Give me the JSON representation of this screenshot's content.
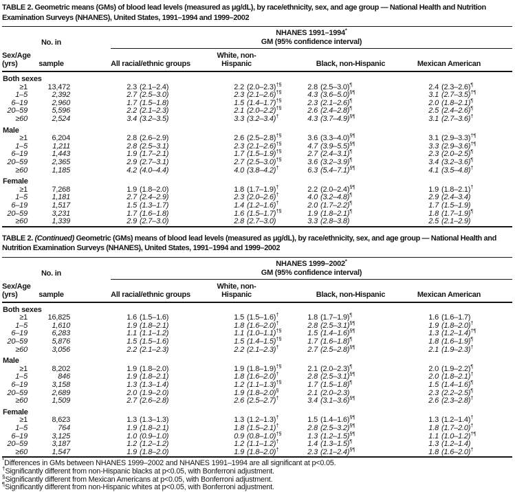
{
  "page": {
    "background": "#ffffff",
    "text_color": "#141414"
  },
  "table1": {
    "heading": {
      "label": "TABLE 2.",
      "continued": "",
      "text": "Geometric means (GMs) of blood lead levels (measured as μg/dL), by race/ethnicity, sex, and age group — National Health and Nutrition Examination Surveys (NHANES), United States, 1991–1994 and 1999–2002"
    },
    "spanner": {
      "survey": "NHANES 1991–1994",
      "marker": "*",
      "subtitle": "GM (95% confidence interval)"
    },
    "columns": {
      "sex_age": "Sex/Age (yrs)",
      "n_line1": "No. in",
      "n_line2": "sample",
      "groups": [
        "All racial/ethnic groups",
        "White, non-Hispanic",
        "Black, non-Hispanic",
        "Mexican American"
      ]
    },
    "sections": [
      {
        "label": "Both sexes",
        "rows": [
          {
            "age": "≥1",
            "n": "13,472",
            "italic": false,
            "cells": [
              [
                "2.3",
                "(2.1–2.4)",
                ""
              ],
              [
                "2.2",
                "(2.0–2.3)",
                "†§"
              ],
              [
                "2.8",
                "(2.5–3.0)",
                "¶"
              ],
              [
                "2.4",
                "(2.3–2.6)",
                "¶"
              ]
            ]
          },
          {
            "age": "1–5",
            "n": "2,392",
            "italic": true,
            "cells": [
              [
                "2.7",
                "(2.5–3.0)",
                ""
              ],
              [
                "2.3",
                "(2.1–2.6)",
                "†§"
              ],
              [
                "4.3",
                "(3.6–5.0)",
                "§¶"
              ],
              [
                "3.1",
                "(2.7–3.5)",
                "†¶"
              ]
            ]
          },
          {
            "age": "6–19",
            "n": "2,960",
            "italic": true,
            "cells": [
              [
                "1.7",
                "(1.5–1.8)",
                ""
              ],
              [
                "1.5",
                "(1.4–1.7)",
                "†§"
              ],
              [
                "2.3",
                "(2.1–2.6)",
                "¶"
              ],
              [
                "2.0",
                "(1.8–2.1)",
                "¶"
              ]
            ]
          },
          {
            "age": "20–59",
            "n": "5,596",
            "italic": true,
            "cells": [
              [
                "2.2",
                "(2.1–2.3)",
                ""
              ],
              [
                "2.1",
                "(2.0–2.2)",
                "†§"
              ],
              [
                "2.6",
                "(2.4–2.8)",
                "¶"
              ],
              [
                "2.5",
                "(2.4–2.6)",
                "¶"
              ]
            ]
          },
          {
            "age": "≥60",
            "n": "2,524",
            "italic": true,
            "cells": [
              [
                "3.4",
                "(3.2–3.5)",
                ""
              ],
              [
                "3.3",
                "(3.2–3.4)",
                "†"
              ],
              [
                "4.3",
                "(3.7–4.9)",
                "§¶"
              ],
              [
                "3.1",
                "(2.7–3.6)",
                "†"
              ]
            ]
          }
        ]
      },
      {
        "label": "Male",
        "rows": [
          {
            "age": "≥1",
            "n": "6,204",
            "italic": false,
            "cells": [
              [
                "2.8",
                "(2.6–2.9)",
                ""
              ],
              [
                "2.6",
                "(2.5–2.8)",
                "†§"
              ],
              [
                "3.6",
                "(3.3–4.0)",
                "§¶"
              ],
              [
                "3.1",
                "(2.9–3.3)",
                "†¶"
              ]
            ]
          },
          {
            "age": "1–5",
            "n": "1,211",
            "italic": true,
            "cells": [
              [
                "2.8",
                "(2.5–3.1)",
                ""
              ],
              [
                "2.3",
                "(2.1–2.6)",
                "†§"
              ],
              [
                "4.7",
                "(3.9–5.5)",
                "§¶"
              ],
              [
                "3.3",
                "(2.9–3.6)",
                "†¶"
              ]
            ]
          },
          {
            "age": "6–19",
            "n": "1,443",
            "italic": true,
            "cells": [
              [
                "1.9",
                "(1.7–2.1)",
                ""
              ],
              [
                "1.7",
                "(1.5–1.9)",
                "†§"
              ],
              [
                "2.7",
                "(2.4–3.1)",
                "¶"
              ],
              [
                "2.3",
                "(2.0–2.5)",
                "¶"
              ]
            ]
          },
          {
            "age": "20–59",
            "n": "2,365",
            "italic": true,
            "cells": [
              [
                "2.9",
                "(2.7–3.1)",
                ""
              ],
              [
                "2.7",
                "(2.5–3.0)",
                "†§"
              ],
              [
                "3.6",
                "(3.2–3.9)",
                "¶"
              ],
              [
                "3.4",
                "(3.2–3.6)",
                "¶"
              ]
            ]
          },
          {
            "age": "≥60",
            "n": "1,185",
            "italic": true,
            "cells": [
              [
                "4.2",
                "(4.0–4.4)",
                ""
              ],
              [
                "4.0",
                "(3.8–4.2)",
                "†"
              ],
              [
                "6.3",
                "(5.4–7.1)",
                "§¶"
              ],
              [
                "4.1",
                "(3.5–4.8)",
                "†"
              ]
            ]
          }
        ]
      },
      {
        "label": "Female",
        "rows": [
          {
            "age": "≥1",
            "n": "7,268",
            "italic": false,
            "cells": [
              [
                "1.9",
                "(1.8–2.0)",
                ""
              ],
              [
                "1.8",
                "(1.7–1.9)",
                "†"
              ],
              [
                "2.2",
                "(2.0–2.4)",
                "§¶"
              ],
              [
                "1.9",
                "(1.8–2.1)",
                "†"
              ]
            ]
          },
          {
            "age": "1–5",
            "n": "1,181",
            "italic": true,
            "cells": [
              [
                "2.7",
                "(2.4–2.9)",
                ""
              ],
              [
                "2.3",
                "(2.0–2.6)",
                "†"
              ],
              [
                "4.0",
                "(3.2–4.8)",
                "¶"
              ],
              [
                "2.9",
                "(2.4–3.4)",
                ""
              ]
            ]
          },
          {
            "age": "6–19",
            "n": "1,517",
            "italic": true,
            "cells": [
              [
                "1.5",
                "(1.3–1.7)",
                ""
              ],
              [
                "1.4",
                "(1.2–1.6)",
                "†"
              ],
              [
                "2.0",
                "(1.7–2.2)",
                "¶"
              ],
              [
                "1.7",
                "(1.5–1.9)",
                ""
              ]
            ]
          },
          {
            "age": "20–59",
            "n": "3,231",
            "italic": true,
            "cells": [
              [
                "1.7",
                "(1.6–1.8)",
                ""
              ],
              [
                "1.6",
                "(1.5–1.7)",
                "†§"
              ],
              [
                "1.9",
                "(1.8–2.1)",
                "¶"
              ],
              [
                "1.8",
                "(1.7–1.9)",
                "¶"
              ]
            ]
          },
          {
            "age": "≥60",
            "n": "1,339",
            "italic": true,
            "cells": [
              [
                "2.9",
                "(2.7–3.0)",
                ""
              ],
              [
                "2.8",
                "(2.7–3.0)",
                ""
              ],
              [
                "3.3",
                "(2.8–3.8)",
                ""
              ],
              [
                "2.5",
                "(2.1–2.9)",
                ""
              ]
            ]
          }
        ]
      }
    ]
  },
  "table2": {
    "heading": {
      "label": "TABLE 2.",
      "continued": "(Continued)",
      "text": "Geometric (GMs) means of blood lead levels (measured as μg/dL), by race/ethnicity, sex, and age group — National Health and Nutrition Examination Surveys (NHANES), United States, 1991–1994 and 1999–2002"
    },
    "spanner": {
      "survey": "NHANES 1999–2002",
      "marker": "*",
      "subtitle": "GM (95% confidence interval)"
    },
    "columns": {
      "sex_age": "Sex/Age (yrs)",
      "n_line1": "No. in",
      "n_line2": "sample",
      "groups": [
        "All racial/ethnic groups",
        "White, non-Hispanic",
        "Black, non-Hispanic",
        "Mexican American"
      ]
    },
    "sections": [
      {
        "label": "Both sexes",
        "rows": [
          {
            "age": "≥1",
            "n": "16,825",
            "italic": false,
            "cells": [
              [
                "1.6",
                "(1.5–1.6)",
                ""
              ],
              [
                "1.5",
                "(1.5–1.6)",
                "†"
              ],
              [
                "1.8",
                "(1.7–1.9)",
                "¶"
              ],
              [
                "1.6",
                "(1.6–1.7)",
                ""
              ]
            ]
          },
          {
            "age": "1–5",
            "n": "1,610",
            "italic": true,
            "cells": [
              [
                "1.9",
                "(1.8–2.1)",
                ""
              ],
              [
                "1.8",
                "(1.6–2.0)",
                "†"
              ],
              [
                "2.8",
                "(2.5–3.1)",
                "§¶"
              ],
              [
                "1.9",
                "(1.8–2.0)",
                "†"
              ]
            ]
          },
          {
            "age": "6–19",
            "n": "6,283",
            "italic": true,
            "cells": [
              [
                "1.1",
                "(1.1–1.2)",
                ""
              ],
              [
                "1.1",
                "(1.0–1.1)",
                "†§"
              ],
              [
                "1.5",
                "(1.4–1.6)",
                "§¶"
              ],
              [
                "1.3",
                "(1.2–1.4)",
                "†¶"
              ]
            ]
          },
          {
            "age": "20–59",
            "n": "5,876",
            "italic": true,
            "cells": [
              [
                "1.5",
                "(1.5–1.6)",
                ""
              ],
              [
                "1.5",
                "(1.4–1.5)",
                "†§"
              ],
              [
                "1.7",
                "(1.6–1.8)",
                "¶"
              ],
              [
                "1.8",
                "(1.6–1.9)",
                "¶"
              ]
            ]
          },
          {
            "age": "≥60",
            "n": "3,056",
            "italic": true,
            "cells": [
              [
                "2.2",
                "(2.1–2.3)",
                ""
              ],
              [
                "2.2",
                "(2.1–2.3)",
                "†"
              ],
              [
                "2.7",
                "(2.5–2.8)",
                "§¶"
              ],
              [
                "2.1",
                "(1.9–2.3)",
                "†"
              ]
            ]
          }
        ]
      },
      {
        "label": "Male",
        "rows": [
          {
            "age": "≥1",
            "n": "8,202",
            "italic": false,
            "cells": [
              [
                "1.9",
                "(1.8–2.0)",
                ""
              ],
              [
                "1.9",
                "(1.8–1.9)",
                "†§"
              ],
              [
                "2.1",
                "(2.0–2.3)",
                "¶"
              ],
              [
                "2.0",
                "(1.9–2.2)",
                "¶"
              ]
            ]
          },
          {
            "age": "1–5",
            "n": "846",
            "italic": true,
            "cells": [
              [
                "1.9",
                "(1.8–2.1)",
                ""
              ],
              [
                "1.8",
                "(1.6–2.0)",
                "†"
              ],
              [
                "2.8",
                "(2.5–3.1)",
                "§¶"
              ],
              [
                "2.0",
                "(1.8–2.1)",
                "†"
              ]
            ]
          },
          {
            "age": "6–19",
            "n": "3,158",
            "italic": true,
            "cells": [
              [
                "1.3",
                "(1.3–1.4)",
                ""
              ],
              [
                "1.2",
                "(1.1–1.3)",
                "†§"
              ],
              [
                "1.7",
                "(1.5–1.8)",
                "¶"
              ],
              [
                "1.5",
                "(1.4–1.6)",
                "¶"
              ]
            ]
          },
          {
            "age": "20–59",
            "n": "2,689",
            "italic": true,
            "cells": [
              [
                "2.0",
                "(1.9–2.0)",
                ""
              ],
              [
                "1.9",
                "(1.8–2.0)",
                "§"
              ],
              [
                "2.1",
                "(2.0–2.3)",
                ""
              ],
              [
                "2.3",
                "(2.2–2.5)",
                "¶"
              ]
            ]
          },
          {
            "age": "≥60",
            "n": "1,509",
            "italic": true,
            "cells": [
              [
                "2.7",
                "(2.6–2.8)",
                ""
              ],
              [
                "2.6",
                "(2.5–2.7)",
                "†"
              ],
              [
                "3.4",
                "(3.1–3.6)",
                "§¶"
              ],
              [
                "2.6",
                "(2.3–2.8)",
                "†"
              ]
            ]
          }
        ]
      },
      {
        "label": "Female",
        "rows": [
          {
            "age": "≥1",
            "n": "8,623",
            "italic": false,
            "cells": [
              [
                "1.3",
                "(1.3–1.3)",
                ""
              ],
              [
                "1.3",
                "(1.2–1.3)",
                "†"
              ],
              [
                "1.5",
                "(1.4–1.6)",
                "§¶"
              ],
              [
                "1.3",
                "(1.2–1.4)",
                "†"
              ]
            ]
          },
          {
            "age": "1–5",
            "n": "764",
            "italic": true,
            "cells": [
              [
                "1.9",
                "(1.8–2.1)",
                ""
              ],
              [
                "1.8",
                "(1.5–2.1)",
                "†"
              ],
              [
                "2.8",
                "(2.5–3.2)",
                "§¶"
              ],
              [
                "1.8",
                "(1.7–2.0)",
                "†"
              ]
            ]
          },
          {
            "age": "6–19",
            "n": "3,125",
            "italic": true,
            "cells": [
              [
                "1.0",
                "(0.9–1.0)",
                ""
              ],
              [
                "0.9",
                "(0.8–1.0)",
                "†§"
              ],
              [
                "1.3",
                "(1.2–1.5)",
                "§¶"
              ],
              [
                "1.1",
                "(1.0–1.2)",
                "†¶"
              ]
            ]
          },
          {
            "age": "20–59",
            "n": "3,187",
            "italic": true,
            "cells": [
              [
                "1.2",
                "(1.2–1.2)",
                ""
              ],
              [
                "1.2",
                "(1.1–1.2)",
                "†"
              ],
              [
                "1.4",
                "(1.3–1.5)",
                "¶"
              ],
              [
                "1.3",
                "(1.2–1.4)",
                ""
              ]
            ]
          },
          {
            "age": "≥60",
            "n": "1,547",
            "italic": true,
            "cells": [
              [
                "1.9",
                "(1.8–2.0)",
                ""
              ],
              [
                "1.9",
                "(1.8–2.0)",
                "†"
              ],
              [
                "2.3",
                "(2.1–2.4)",
                "§¶"
              ],
              [
                "1.8",
                "(1.6–2.0)",
                "†"
              ]
            ]
          }
        ]
      }
    ]
  },
  "footnotes": [
    {
      "marker": "*",
      "text": "Differences in GMs between NHANES 1999–2002 and NHANES 1991–1994 are all significant at p<0.05."
    },
    {
      "marker": "†",
      "text": "Significantly different from non-Hispanic blacks at p<0.05, with Bonferroni adjustment."
    },
    {
      "marker": "§",
      "text": "Significantly different from Mexican Americans at p<0.05, with Bonferroni adjustment."
    },
    {
      "marker": "¶",
      "text": "Significantly different from non-Hispanic whites at p<0.05, with Bonferroni adjustment."
    }
  ]
}
